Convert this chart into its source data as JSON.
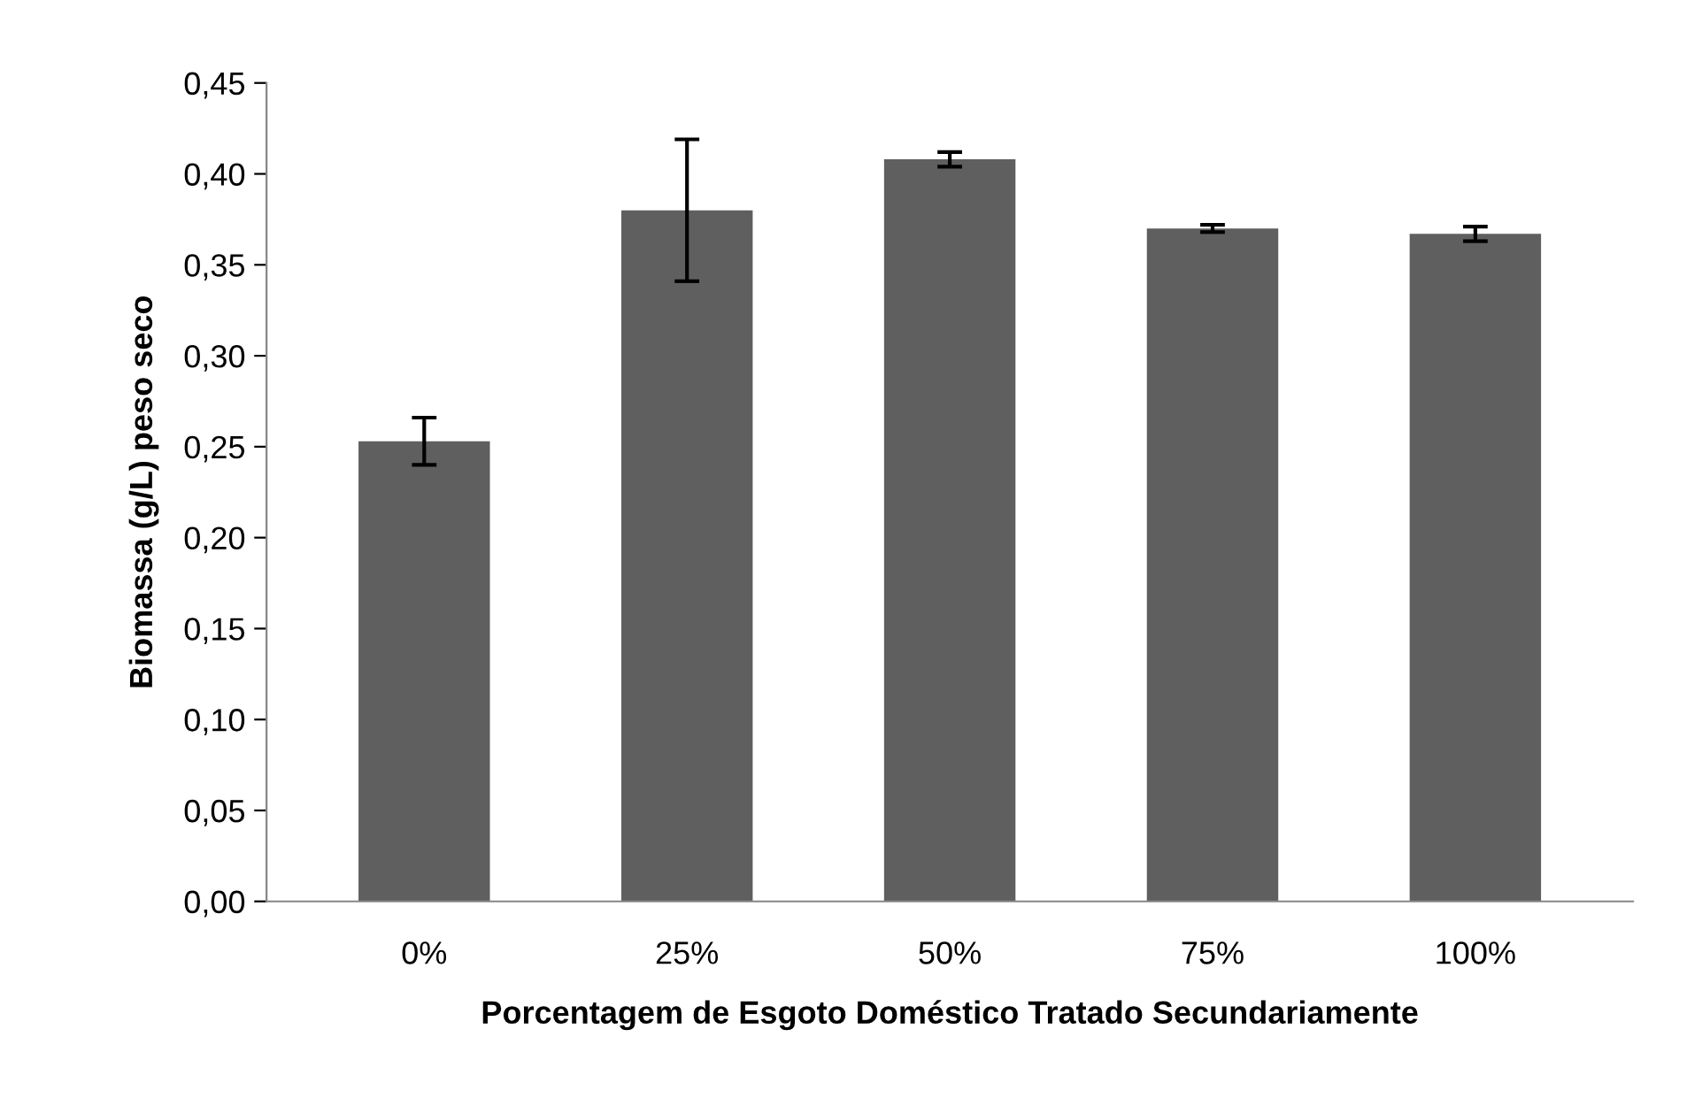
{
  "chart_data": {
    "type": "bar",
    "xlabel": "Porcentagem de Esgoto Doméstico Tratado Secundariamente",
    "ylabel": "Biomassa (g/L) peso seco",
    "categories": [
      "0%",
      "25%",
      "50%",
      "75%",
      "100%"
    ],
    "values": [
      0.253,
      0.38,
      0.408,
      0.37,
      0.367
    ],
    "errors": [
      0.013,
      0.039,
      0.004,
      0.002,
      0.004
    ],
    "color": "#5f5f5f",
    "ylim": [
      0,
      0.45
    ],
    "yticks": [
      {
        "value": 0,
        "label": "0,00"
      },
      {
        "value": 0.05,
        "label": "0,05"
      },
      {
        "value": 0.1,
        "label": "0,10"
      },
      {
        "value": 0.15,
        "label": "0,15"
      },
      {
        "value": 0.2,
        "label": "0,20"
      },
      {
        "value": 0.25,
        "label": "0,25"
      },
      {
        "value": 0.3,
        "label": "0,30"
      },
      {
        "value": 0.35,
        "label": "0,35"
      },
      {
        "value": 0.4,
        "label": "0,40"
      },
      {
        "value": 0.45,
        "label": "0,45"
      }
    ],
    "grid": false
  }
}
